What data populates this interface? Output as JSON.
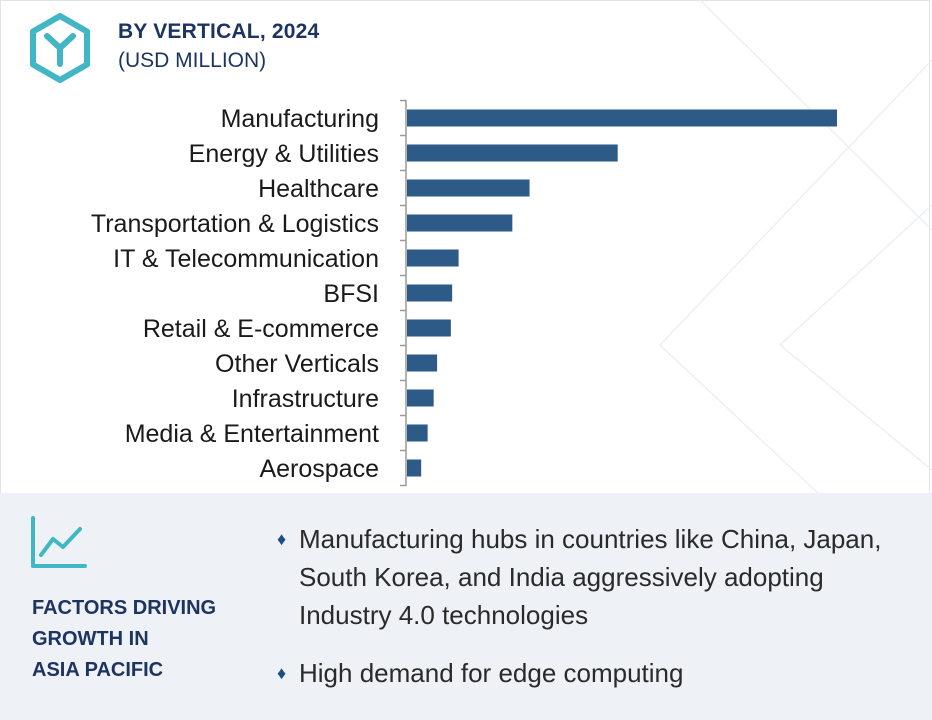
{
  "header": {
    "title": "BY VERTICAL, 2024",
    "subtitle": "(USD MILLION)"
  },
  "colors": {
    "bar": "#2e5a88",
    "title": "#1d3461",
    "accent_icon": "#41b6c4",
    "panel_bg": "#eef1f6"
  },
  "icons": {
    "logo": "hexagon-y-logo-icon",
    "factors": "trend-line-chart-icon",
    "bullet": "diamond-bullet-icon"
  },
  "chart_data": {
    "type": "bar",
    "orientation": "horizontal",
    "title": "BY VERTICAL, 2024",
    "subtitle": "(USD MILLION)",
    "xlabel": "",
    "ylabel": "",
    "grid": false,
    "legend": "none",
    "axis_numbers_shown": false,
    "scale_note": "values are relative bar lengths; no numeric axis is printed",
    "xlim": [
      0,
      100
    ],
    "categories": [
      "Manufacturing",
      "Energy & Utilities",
      "Healthcare",
      "Transportation & Logistics",
      "IT & Telecommunication",
      "BFSI",
      "Retail & E-commerce",
      "Other Verticals",
      "Infrastructure",
      "Media & Entertainment",
      "Aerospace"
    ],
    "values": [
      100,
      49,
      28.5,
      24.5,
      12,
      10.5,
      10.2,
      7,
      6.2,
      4.8,
      3.3
    ]
  },
  "factors": {
    "title_lines": [
      "FACTORS DRIVING",
      "GROWTH IN",
      "ASIA PACIFIC"
    ],
    "bullets": [
      "Manufacturing hubs in countries like China, Japan, South Korea, and India aggressively adopting Industry 4.0 technologies",
      "High demand for edge computing"
    ]
  }
}
